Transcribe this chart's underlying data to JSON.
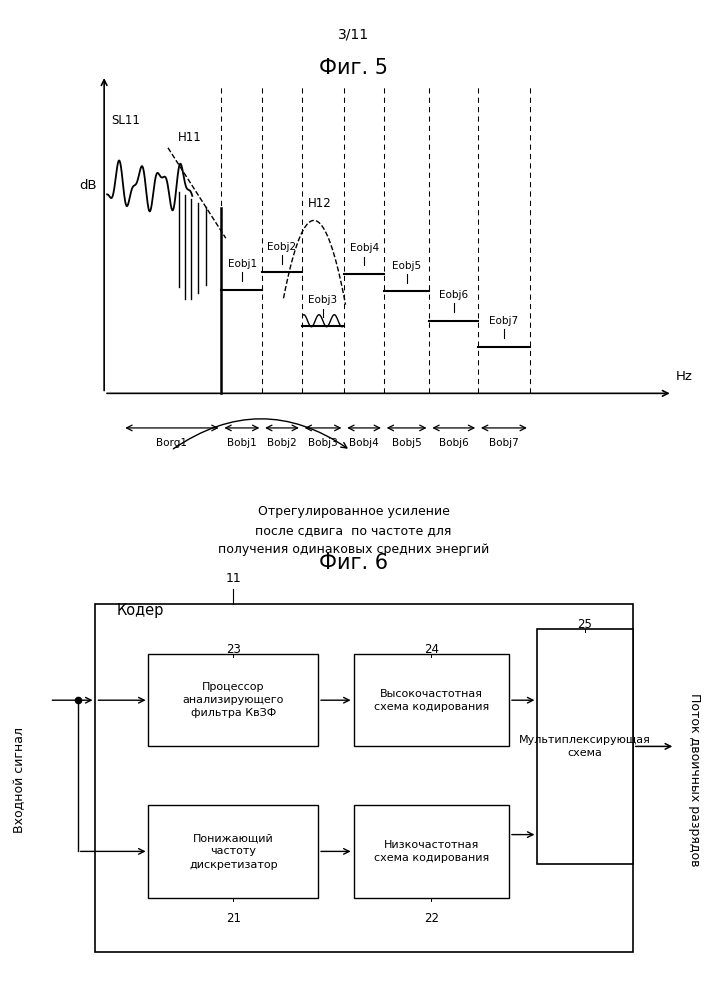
{
  "page_label": "3/11",
  "fig5_title": "Фиг. 5",
  "fig6_title": "Фиг. 6",
  "caption_text": "Отрегулированное усиление\nпосле сдвига  по частоте для\nполучения одинаковых средних энергий",
  "ylabel_fig5": "dB",
  "xlabel_fig5": "Hz",
  "label_SL11": "SL11",
  "label_H11": "H11",
  "label_H12": "H12",
  "box_label_coder": "Кодер",
  "box_label_11": "11",
  "box_label_23": "23",
  "box_label_24": "24",
  "box_label_25": "25",
  "box_label_21": "21",
  "box_label_22": "22",
  "box_text_23": "Процессор\nанализирующего\nфильтра КвЗФ",
  "box_text_24": "Высокочастотная\nсхема кодирования",
  "box_text_25": "Мультиплексирующая\nсхема",
  "box_text_21": "Понижающий\nчастоту\nдискретизатор",
  "box_text_22": "Низкочастотная\nсхема кодирования",
  "left_label": "Входной сигнал",
  "right_label": "Поток двоичных разрядов",
  "bg_color": "#ffffff"
}
